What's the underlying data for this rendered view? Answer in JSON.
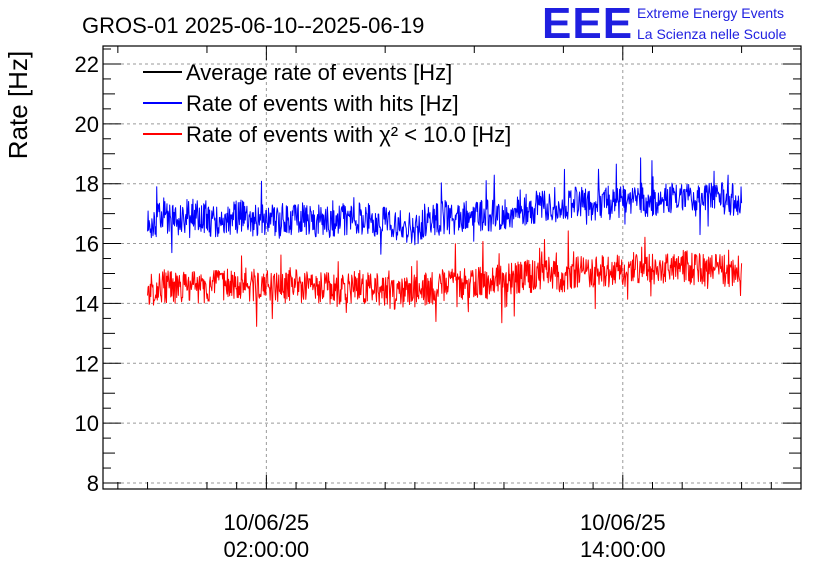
{
  "chart_data": {
    "type": "line",
    "title": "GROS-01 2025-06-10--2025-06-19",
    "ylabel": "Rate [Hz]",
    "xlabel": "",
    "ylim": [
      7.8,
      22.6
    ],
    "y_ticks": [
      "8",
      "10",
      "12",
      "14",
      "16",
      "18",
      "20",
      "22"
    ],
    "x_tick_labels": [
      {
        "date": "10/06/25",
        "time": "02:00:00"
      },
      {
        "date": "10/06/25",
        "time": "14:00:00"
      }
    ],
    "grid": true,
    "legend_position": "top-left",
    "x_unit": "hours since 10/06/25 00:00:00",
    "x_range": [
      -3.5,
      20.0
    ],
    "series": [
      {
        "name": "Average rate of events [Hz]",
        "color": "#000000",
        "points": []
      },
      {
        "name": "Rate of events with hits [Hz]",
        "color": "#0000ff",
        "points": [
          [
            -2.0,
            16.6
          ],
          [
            -1.5,
            16.9
          ],
          [
            -1.0,
            16.8
          ],
          [
            -0.5,
            17.0
          ],
          [
            0.0,
            16.8
          ],
          [
            0.5,
            16.7
          ],
          [
            1.0,
            16.9
          ],
          [
            1.5,
            16.8
          ],
          [
            2.0,
            16.8
          ],
          [
            2.5,
            16.7
          ],
          [
            3.0,
            16.9
          ],
          [
            3.5,
            16.8
          ],
          [
            4.0,
            16.7
          ],
          [
            4.5,
            16.8
          ],
          [
            5.0,
            16.9
          ],
          [
            5.5,
            16.8
          ],
          [
            6.0,
            16.7
          ],
          [
            6.5,
            16.6
          ],
          [
            7.0,
            16.5
          ],
          [
            7.5,
            16.7
          ],
          [
            8.0,
            16.9
          ],
          [
            8.5,
            16.8
          ],
          [
            9.0,
            17.0
          ],
          [
            9.5,
            16.9
          ],
          [
            10.0,
            17.0
          ],
          [
            10.5,
            17.1
          ],
          [
            11.0,
            17.2
          ],
          [
            11.5,
            17.3
          ],
          [
            12.0,
            17.2
          ],
          [
            12.5,
            17.4
          ],
          [
            13.0,
            17.3
          ],
          [
            13.5,
            17.4
          ],
          [
            14.0,
            17.4
          ],
          [
            14.5,
            17.5
          ],
          [
            15.0,
            17.4
          ],
          [
            15.5,
            17.5
          ],
          [
            16.0,
            17.6
          ],
          [
            16.5,
            17.4
          ],
          [
            17.0,
            17.5
          ],
          [
            17.5,
            17.5
          ],
          [
            18.0,
            17.4
          ]
        ]
      },
      {
        "name": "Rate of events with χ² < 10.0 [Hz]",
        "color": "#ff0000",
        "points": [
          [
            -2.0,
            14.4
          ],
          [
            -1.5,
            14.6
          ],
          [
            -1.0,
            14.5
          ],
          [
            -0.5,
            14.6
          ],
          [
            0.0,
            14.5
          ],
          [
            0.5,
            14.6
          ],
          [
            1.0,
            14.7
          ],
          [
            1.5,
            14.6
          ],
          [
            2.0,
            14.6
          ],
          [
            2.5,
            14.5
          ],
          [
            3.0,
            14.6
          ],
          [
            3.5,
            14.5
          ],
          [
            4.0,
            14.5
          ],
          [
            4.5,
            14.4
          ],
          [
            5.0,
            14.6
          ],
          [
            5.5,
            14.5
          ],
          [
            6.0,
            14.4
          ],
          [
            6.5,
            14.3
          ],
          [
            7.0,
            14.4
          ],
          [
            7.5,
            14.5
          ],
          [
            8.0,
            14.6
          ],
          [
            8.5,
            14.6
          ],
          [
            9.0,
            14.7
          ],
          [
            9.5,
            14.7
          ],
          [
            10.0,
            14.8
          ],
          [
            10.5,
            14.9
          ],
          [
            11.0,
            14.9
          ],
          [
            11.5,
            15.0
          ],
          [
            12.0,
            14.9
          ],
          [
            12.5,
            15.1
          ],
          [
            13.0,
            15.0
          ],
          [
            13.5,
            15.1
          ],
          [
            14.0,
            15.1
          ],
          [
            14.5,
            15.2
          ],
          [
            15.0,
            15.1
          ],
          [
            15.5,
            15.2
          ],
          [
            16.0,
            15.3
          ],
          [
            16.5,
            15.1
          ],
          [
            17.0,
            15.2
          ],
          [
            17.5,
            15.1
          ],
          [
            18.0,
            15.1
          ]
        ]
      }
    ]
  },
  "logo": {
    "mark": "EEE",
    "line1": "Extreme Energy Events",
    "line2": "La Scienza nelle Scuole",
    "color": "#1f1fe0"
  }
}
